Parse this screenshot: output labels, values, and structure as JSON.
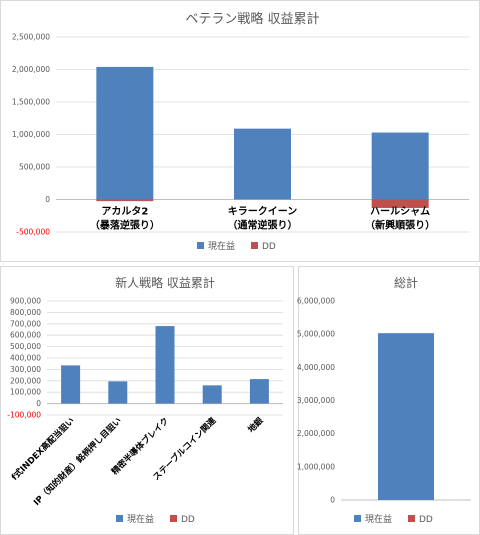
{
  "colors": {
    "current": "#4f81bd",
    "dd": "#c0504d",
    "grid": "#d9d9d9",
    "axis": "#bfbfbf",
    "text": "#595959",
    "negative": "#ff0000"
  },
  "chart_data": [
    {
      "type": "bar",
      "stacked": true,
      "title": "ベテラン戦略 収益累計",
      "categories": [
        [
          "アカルタ2",
          "（暴落逆張り）"
        ],
        [
          "キラークイーン",
          "（通常逆張り）"
        ],
        [
          "ハールシャム",
          "（新興順張り）"
        ]
      ],
      "series": [
        {
          "name": "現在益",
          "values": [
            2040000,
            1090000,
            1030000
          ]
        },
        {
          "name": "DD",
          "values": [
            -25000,
            0,
            -130000
          ]
        }
      ],
      "yticks": [
        "2,500,000",
        "2,000,000",
        "1,500,000",
        "1,000,000",
        "500,000",
        "0",
        "-500,000"
      ],
      "ylim": [
        -500000,
        2500000
      ],
      "grid": true,
      "legend": "bottom"
    },
    {
      "type": "bar",
      "stacked": true,
      "title": "新人戦略 収益累計",
      "categories": [
        "f式INDEX高配当狙い",
        "IP（知的財産）銘柄押し目狙い",
        "精密半導体ブレイク",
        "ステーブルコイン関連",
        "地銀"
      ],
      "series": [
        {
          "name": "現在益",
          "values": [
            335000,
            195000,
            680000,
            160000,
            215000
          ]
        },
        {
          "name": "DD",
          "values": [
            0,
            0,
            0,
            0,
            0
          ]
        }
      ],
      "yticks": [
        "900,000",
        "800,000",
        "700,000",
        "600,000",
        "500,000",
        "400,000",
        "300,000",
        "200,000",
        "100,000",
        "0",
        "-100,000"
      ],
      "ylim": [
        -100000,
        900000
      ],
      "grid": true,
      "legend": "bottom"
    },
    {
      "type": "bar",
      "stacked": true,
      "title": "総計",
      "categories": [
        ""
      ],
      "series": [
        {
          "name": "現在益",
          "values": [
            5030000
          ]
        },
        {
          "name": "DD",
          "values": [
            0
          ]
        }
      ],
      "yticks": [
        "6,000,000",
        "5,000,000",
        "4,000,000",
        "3,000,000",
        "2,000,000",
        "1,000,000",
        "0"
      ],
      "ylim": [
        0,
        6000000
      ],
      "grid": false,
      "legend": "bottom"
    }
  ]
}
